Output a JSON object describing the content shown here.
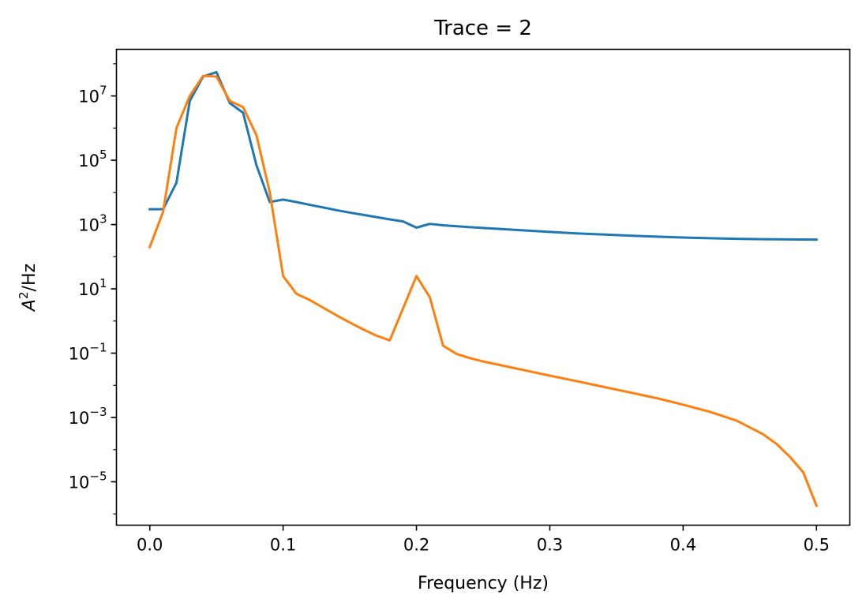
{
  "chart_data": {
    "type": "line",
    "title": "Trace = 2",
    "xlabel": "Frequency (Hz)",
    "ylabel": "A²/Hz",
    "ylabel_base": "A",
    "ylabel_sup": "2",
    "ylabel_rest": "/Hz",
    "yscale": "log",
    "xlim": [
      -0.025,
      0.525
    ],
    "ylim_log10": [
      -6.35,
      8.45
    ],
    "x_ticks": [
      {
        "value": 0.0,
        "label": "0.0"
      },
      {
        "value": 0.1,
        "label": "0.1"
      },
      {
        "value": 0.2,
        "label": "0.2"
      },
      {
        "value": 0.3,
        "label": "0.3"
      },
      {
        "value": 0.4,
        "label": "0.4"
      },
      {
        "value": 0.5,
        "label": "0.5"
      }
    ],
    "y_ticks": [
      {
        "exp": 7,
        "base": "10",
        "sup": "7"
      },
      {
        "exp": 5,
        "base": "10",
        "sup": "5"
      },
      {
        "exp": 3,
        "base": "10",
        "sup": "3"
      },
      {
        "exp": 1,
        "base": "10",
        "sup": "1"
      },
      {
        "exp": -1,
        "base": "10",
        "sup": "−1"
      },
      {
        "exp": -3,
        "base": "10",
        "sup": "−3"
      },
      {
        "exp": -5,
        "base": "10",
        "sup": "−5"
      }
    ],
    "series": [
      {
        "name": "trace-2-series-1",
        "color": "#1f77b4",
        "points": [
          [
            0.0,
            3000
          ],
          [
            0.01,
            3000
          ],
          [
            0.02,
            20000
          ],
          [
            0.03,
            7000000
          ],
          [
            0.04,
            40000000
          ],
          [
            0.05,
            55000000
          ],
          [
            0.06,
            6000000
          ],
          [
            0.07,
            3000000
          ],
          [
            0.08,
            70000
          ],
          [
            0.09,
            5000
          ],
          [
            0.1,
            6000
          ],
          [
            0.11,
            5000
          ],
          [
            0.12,
            4100
          ],
          [
            0.13,
            3400
          ],
          [
            0.14,
            2800
          ],
          [
            0.15,
            2350
          ],
          [
            0.16,
            2000
          ],
          [
            0.17,
            1700
          ],
          [
            0.18,
            1450
          ],
          [
            0.19,
            1250
          ],
          [
            0.2,
            800
          ],
          [
            0.21,
            1050
          ],
          [
            0.22,
            950
          ],
          [
            0.24,
            830
          ],
          [
            0.26,
            740
          ],
          [
            0.28,
            660
          ],
          [
            0.3,
            590
          ],
          [
            0.32,
            530
          ],
          [
            0.34,
            490
          ],
          [
            0.36,
            450
          ],
          [
            0.38,
            420
          ],
          [
            0.4,
            395
          ],
          [
            0.42,
            375
          ],
          [
            0.44,
            360
          ],
          [
            0.46,
            350
          ],
          [
            0.48,
            345
          ],
          [
            0.5,
            340
          ]
        ]
      },
      {
        "name": "trace-2-series-2",
        "color": "#ff7f0e",
        "points": [
          [
            0.0,
            200
          ],
          [
            0.01,
            2500
          ],
          [
            0.02,
            1000000
          ],
          [
            0.03,
            10000000
          ],
          [
            0.04,
            42000000
          ],
          [
            0.05,
            40000000
          ],
          [
            0.06,
            7000000
          ],
          [
            0.07,
            4500000
          ],
          [
            0.08,
            600000
          ],
          [
            0.09,
            10000
          ],
          [
            0.1,
            25
          ],
          [
            0.11,
            7
          ],
          [
            0.12,
            4.5
          ],
          [
            0.13,
            2.6
          ],
          [
            0.14,
            1.5
          ],
          [
            0.15,
            0.9
          ],
          [
            0.16,
            0.55
          ],
          [
            0.17,
            0.35
          ],
          [
            0.18,
            0.25
          ],
          [
            0.2,
            25
          ],
          [
            0.21,
            5.5
          ],
          [
            0.22,
            0.17
          ],
          [
            0.23,
            0.095
          ],
          [
            0.24,
            0.07
          ],
          [
            0.25,
            0.055
          ],
          [
            0.26,
            0.045
          ],
          [
            0.28,
            0.03
          ],
          [
            0.3,
            0.02
          ],
          [
            0.32,
            0.0135
          ],
          [
            0.34,
            0.009
          ],
          [
            0.36,
            0.006
          ],
          [
            0.38,
            0.004
          ],
          [
            0.4,
            0.0025
          ],
          [
            0.42,
            0.0015
          ],
          [
            0.44,
            0.0008
          ],
          [
            0.46,
            0.0003
          ],
          [
            0.47,
            0.00015
          ],
          [
            0.48,
            6e-05
          ],
          [
            0.49,
            2e-05
          ],
          [
            0.5,
            1.8e-06
          ]
        ]
      }
    ]
  }
}
